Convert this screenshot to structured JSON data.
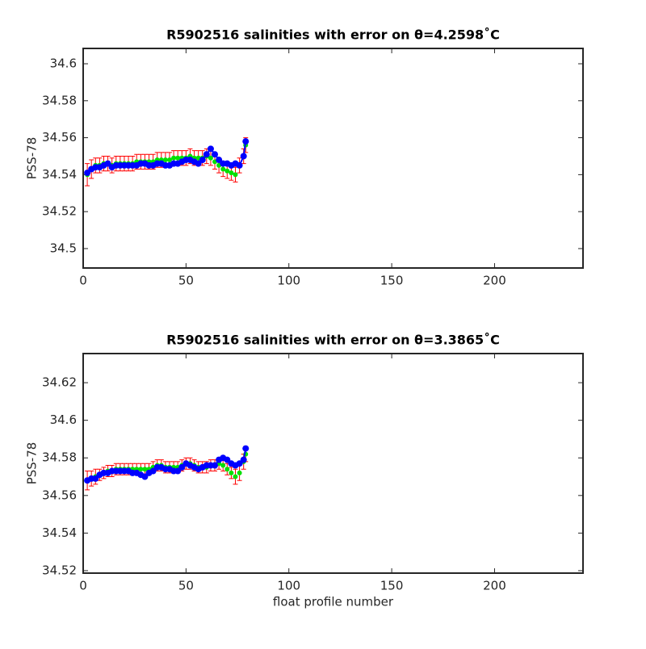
{
  "chart_data": [
    {
      "type": "errorbar",
      "title": "R5902516 salinities with error on θ=4.2598˚C",
      "ylabel": "PSS-78",
      "x": [
        2,
        4,
        6,
        8,
        10,
        12,
        14,
        16,
        18,
        20,
        22,
        24,
        26,
        28,
        30,
        32,
        34,
        36,
        38,
        40,
        42,
        44,
        46,
        48,
        50,
        52,
        54,
        56,
        58,
        60,
        62,
        64,
        66,
        68,
        70,
        72,
        74,
        76,
        78,
        79
      ],
      "series": [
        {
          "color": "#0000ff",
          "values": [
            34.541,
            34.543,
            34.544,
            34.544,
            34.545,
            34.546,
            34.544,
            34.545,
            34.545,
            34.545,
            34.545,
            34.545,
            34.545,
            34.546,
            34.546,
            34.545,
            34.545,
            34.546,
            34.546,
            34.545,
            34.545,
            34.546,
            34.546,
            34.547,
            34.548,
            34.548,
            34.547,
            34.546,
            34.548,
            34.551,
            34.554,
            34.551,
            34.548,
            34.546,
            34.546,
            34.545,
            34.546,
            34.545,
            34.55,
            34.558
          ]
        },
        {
          "color": "#00e000",
          "error_color": "#ff0000",
          "values": [
            34.54,
            34.543,
            34.545,
            34.545,
            34.546,
            34.546,
            34.545,
            34.546,
            34.546,
            34.546,
            34.546,
            34.546,
            34.547,
            34.547,
            34.547,
            34.547,
            34.547,
            34.548,
            34.548,
            34.548,
            34.548,
            34.549,
            34.549,
            34.549,
            34.549,
            34.55,
            34.549,
            34.549,
            34.549,
            34.55,
            34.549,
            34.547,
            34.545,
            34.543,
            34.542,
            34.541,
            34.54,
            34.545,
            34.55,
            34.556
          ],
          "errors": [
            0.006,
            0.005,
            0.004,
            0.004,
            0.004,
            0.004,
            0.004,
            0.004,
            0.004,
            0.004,
            0.004,
            0.004,
            0.004,
            0.004,
            0.004,
            0.004,
            0.004,
            0.004,
            0.004,
            0.004,
            0.004,
            0.004,
            0.004,
            0.004,
            0.004,
            0.004,
            0.004,
            0.004,
            0.004,
            0.004,
            0.004,
            0.004,
            0.004,
            0.004,
            0.004,
            0.004,
            0.004,
            0.004,
            0.004,
            0.004
          ]
        }
      ],
      "xlim": [
        0,
        243
      ],
      "xticks": [
        0,
        50,
        100,
        150,
        200
      ],
      "ylim": [
        34.4895,
        34.6083
      ],
      "yticks": [
        34.5,
        34.52,
        34.54,
        34.56,
        34.58,
        34.6
      ]
    },
    {
      "type": "errorbar",
      "title": "R5902516 salinities with error on θ=3.3865˚C",
      "ylabel": "PSS-78",
      "xlabel": "float profile number",
      "x": [
        2,
        4,
        6,
        8,
        10,
        12,
        14,
        16,
        18,
        20,
        22,
        24,
        26,
        28,
        30,
        32,
        34,
        36,
        38,
        40,
        42,
        44,
        46,
        48,
        50,
        52,
        54,
        56,
        58,
        60,
        62,
        64,
        66,
        68,
        70,
        72,
        74,
        76,
        78,
        79
      ],
      "series": [
        {
          "color": "#0000ff",
          "values": [
            34.568,
            34.569,
            34.569,
            34.571,
            34.572,
            34.572,
            34.573,
            34.573,
            34.573,
            34.573,
            34.573,
            34.572,
            34.572,
            34.571,
            34.57,
            34.572,
            34.573,
            34.575,
            34.575,
            34.574,
            34.574,
            34.573,
            34.573,
            34.575,
            34.577,
            34.576,
            34.575,
            34.574,
            34.575,
            34.576,
            34.576,
            34.576,
            34.579,
            34.58,
            34.579,
            34.577,
            34.576,
            34.577,
            34.579,
            34.585
          ]
        },
        {
          "color": "#00e000",
          "error_color": "#ff0000",
          "values": [
            34.568,
            34.569,
            34.57,
            34.571,
            34.572,
            34.573,
            34.573,
            34.574,
            34.574,
            34.574,
            34.574,
            34.574,
            34.574,
            34.574,
            34.574,
            34.574,
            34.575,
            34.576,
            34.576,
            34.575,
            34.575,
            34.575,
            34.575,
            34.576,
            34.577,
            34.577,
            34.576,
            34.575,
            34.575,
            34.575,
            34.576,
            34.576,
            34.577,
            34.576,
            34.574,
            34.572,
            34.57,
            34.572,
            34.578,
            34.582
          ],
          "errors": [
            0.005,
            0.004,
            0.004,
            0.003,
            0.003,
            0.003,
            0.003,
            0.003,
            0.003,
            0.003,
            0.003,
            0.003,
            0.003,
            0.003,
            0.003,
            0.003,
            0.003,
            0.003,
            0.003,
            0.003,
            0.003,
            0.003,
            0.003,
            0.003,
            0.003,
            0.003,
            0.003,
            0.003,
            0.003,
            0.003,
            0.003,
            0.003,
            0.003,
            0.003,
            0.003,
            0.003,
            0.004,
            0.004,
            0.004,
            0.004
          ]
        }
      ],
      "xlim": [
        0,
        243
      ],
      "xticks": [
        0,
        50,
        100,
        150,
        200
      ],
      "ylim": [
        34.5187,
        34.6355
      ],
      "yticks": [
        34.52,
        34.54,
        34.56,
        34.58,
        34.6,
        34.62
      ]
    }
  ]
}
